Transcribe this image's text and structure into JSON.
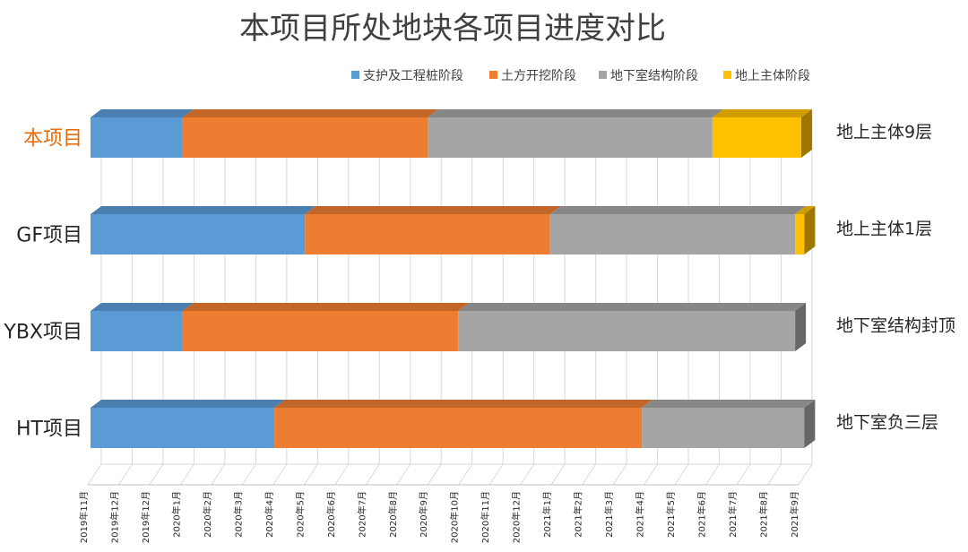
{
  "chart_data": {
    "type": "bar",
    "orientation": "horizontal",
    "stacked": true,
    "three_d": true,
    "title": "本项目所处地块各项目进度对比",
    "categories": [
      "本项目",
      "GF项目",
      "YBX项目",
      "HT项目"
    ],
    "highlight_category": "本项目",
    "status_labels": [
      "地上主体9层",
      "地上主体1层",
      "地下室结构封顶",
      "地下室负三层"
    ],
    "series": [
      {
        "name": "支护及工程桩阶段",
        "color": "#5B9BD5",
        "values": [
          3.0,
          7.0,
          3.0,
          6.0
        ]
      },
      {
        "name": "土方开挖阶段",
        "color": "#ED7D31",
        "values": [
          8.0,
          8.0,
          9.0,
          12.0
        ]
      },
      {
        "name": "地下室结构阶段",
        "color": "#A5A5A5",
        "values": [
          9.3,
          8.0,
          11.0,
          5.3
        ]
      },
      {
        "name": "地上主体阶段",
        "color": "#FFC000",
        "values": [
          2.9,
          0.3,
          0,
          0
        ]
      }
    ],
    "x_ticks": [
      "2019年11月",
      "2019年12月",
      "2019年12月",
      "2020年1月",
      "2020年2月",
      "2020年3月",
      "2020年4月",
      "2020年5月",
      "2020年6月",
      "2020年7月",
      "2020年8月",
      "2020年9月",
      "2020年10月",
      "2020年11月",
      "2020年12月",
      "2021年1月",
      "2021年2月",
      "2021年3月",
      "2021年4月",
      "2021年5月",
      "2021年6月",
      "2021年7月",
      "2021年8月",
      "2021年9月"
    ],
    "x_unit": "months",
    "xlim": [
      0,
      23.2
    ],
    "legend_position": "top-right",
    "grid": true,
    "highlight_color": "#E46C0A"
  }
}
